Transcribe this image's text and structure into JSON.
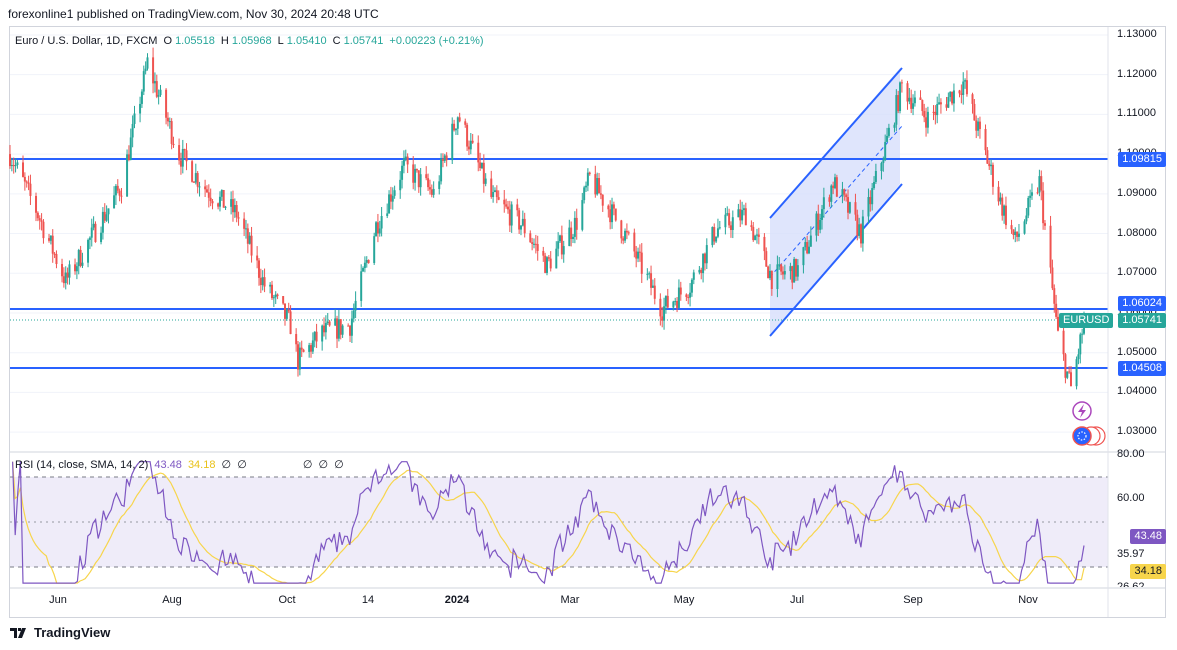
{
  "publisher_line": "forexonline1 published on TradingView.com, Nov 30, 2024 20:48 UTC",
  "legend": {
    "symbol": "Euro / U.S. Dollar, 1D, FXCM",
    "o_label": "O",
    "o": "1.05518",
    "h_label": "H",
    "h": "1.05968",
    "l_label": "L",
    "l": "1.05410",
    "c_label": "C",
    "c": "1.05741",
    "change": "+0.00223 (+0.21%)"
  },
  "price_axis": [
    "1.13000",
    "1.12000",
    "1.11000",
    "1.10000",
    "1.09000",
    "1.08000",
    "1.07000",
    "1.06000",
    "1.05000",
    "1.04000",
    "1.03000"
  ],
  "price_tags": {
    "level_upper": "1.09815",
    "level_mid": "1.06024",
    "ticker": "EURUSD",
    "current": "1.05741",
    "level_lower": "1.04508"
  },
  "rsi_legend": {
    "label": "RSI (14, close, SMA, 14, 2)",
    "rsi": "43.48",
    "sma": "34.18",
    "empty_glyph": "∅"
  },
  "rsi_axis": [
    "80.00",
    "60.00",
    "35.97",
    "26.62"
  ],
  "rsi_tags": {
    "rsi": "43.48",
    "sma": "34.18"
  },
  "time_axis": [
    "Jun",
    "Aug",
    "Oct",
    "14",
    "2024",
    "Mar",
    "May",
    "Jul",
    "Sep",
    "Nov"
  ],
  "brand": "TradingView",
  "colors": {
    "up": "#26a69a",
    "down": "#ef5350",
    "level_line": "#2962ff",
    "rsi_line": "#7e57c2",
    "rsi_sma": "#f7d54c",
    "rsi_band": "#e8e4f6",
    "channel_fill": "#d7defb"
  },
  "chart_data": {
    "type": "candlestick",
    "symbol": "EURUSD",
    "timeframe": "1D",
    "ylim": [
      1.025,
      1.132
    ],
    "horizontal_levels": [
      1.09815,
      1.06024,
      1.04508
    ],
    "current_price": 1.05741,
    "channel": {
      "upper": [
        [
          "2024-06-10",
          1.083
        ],
        [
          "2024-08-26",
          1.1215
        ]
      ],
      "lower": [
        [
          "2024-06-10",
          1.053
        ],
        [
          "2024-08-26",
          1.092
        ]
      ]
    },
    "close_path": [
      [
        "2023-05-01",
        1.1
      ],
      [
        "2023-05-15",
        1.086
      ],
      [
        "2023-05-31",
        1.068
      ],
      [
        "2023-06-15",
        1.08
      ],
      [
        "2023-06-30",
        1.092
      ],
      [
        "2023-07-14",
        1.123
      ],
      [
        "2023-07-31",
        1.1
      ],
      [
        "2023-08-15",
        1.091
      ],
      [
        "2023-08-31",
        1.085
      ],
      [
        "2023-09-15",
        1.067
      ],
      [
        "2023-09-29",
        1.057
      ],
      [
        "2023-10-03",
        1.048
      ],
      [
        "2023-10-16",
        1.055
      ],
      [
        "2023-10-31",
        1.057
      ],
      [
        "2023-11-14",
        1.082
      ],
      [
        "2023-11-29",
        1.097
      ],
      [
        "2023-12-15",
        1.09
      ],
      [
        "2023-12-28",
        1.11
      ],
      [
        "2024-01-15",
        1.089
      ],
      [
        "2024-02-01",
        1.082
      ],
      [
        "2024-02-14",
        1.072
      ],
      [
        "2024-03-01",
        1.083
      ],
      [
        "2024-03-08",
        1.094
      ],
      [
        "2024-03-28",
        1.079
      ],
      [
        "2024-04-16",
        1.061
      ],
      [
        "2024-05-01",
        1.067
      ],
      [
        "2024-05-15",
        1.081
      ],
      [
        "2024-05-31",
        1.085
      ],
      [
        "2024-06-14",
        1.069
      ],
      [
        "2024-06-28",
        1.071
      ],
      [
        "2024-07-17",
        1.093
      ],
      [
        "2024-08-01",
        1.08
      ],
      [
        "2024-08-23",
        1.117
      ],
      [
        "2024-09-06",
        1.109
      ],
      [
        "2024-09-25",
        1.118
      ],
      [
        "2024-10-15",
        1.088
      ],
      [
        "2024-10-23",
        1.078
      ],
      [
        "2024-11-05",
        1.093
      ],
      [
        "2024-11-15",
        1.054
      ],
      [
        "2024-11-22",
        1.041
      ],
      [
        "2024-11-29",
        1.05741
      ]
    ],
    "rsi": {
      "period": 14,
      "value": 43.48,
      "sma": 34.18,
      "ylim": [
        26,
        82
      ],
      "bands": [
        70,
        50,
        30
      ]
    }
  }
}
